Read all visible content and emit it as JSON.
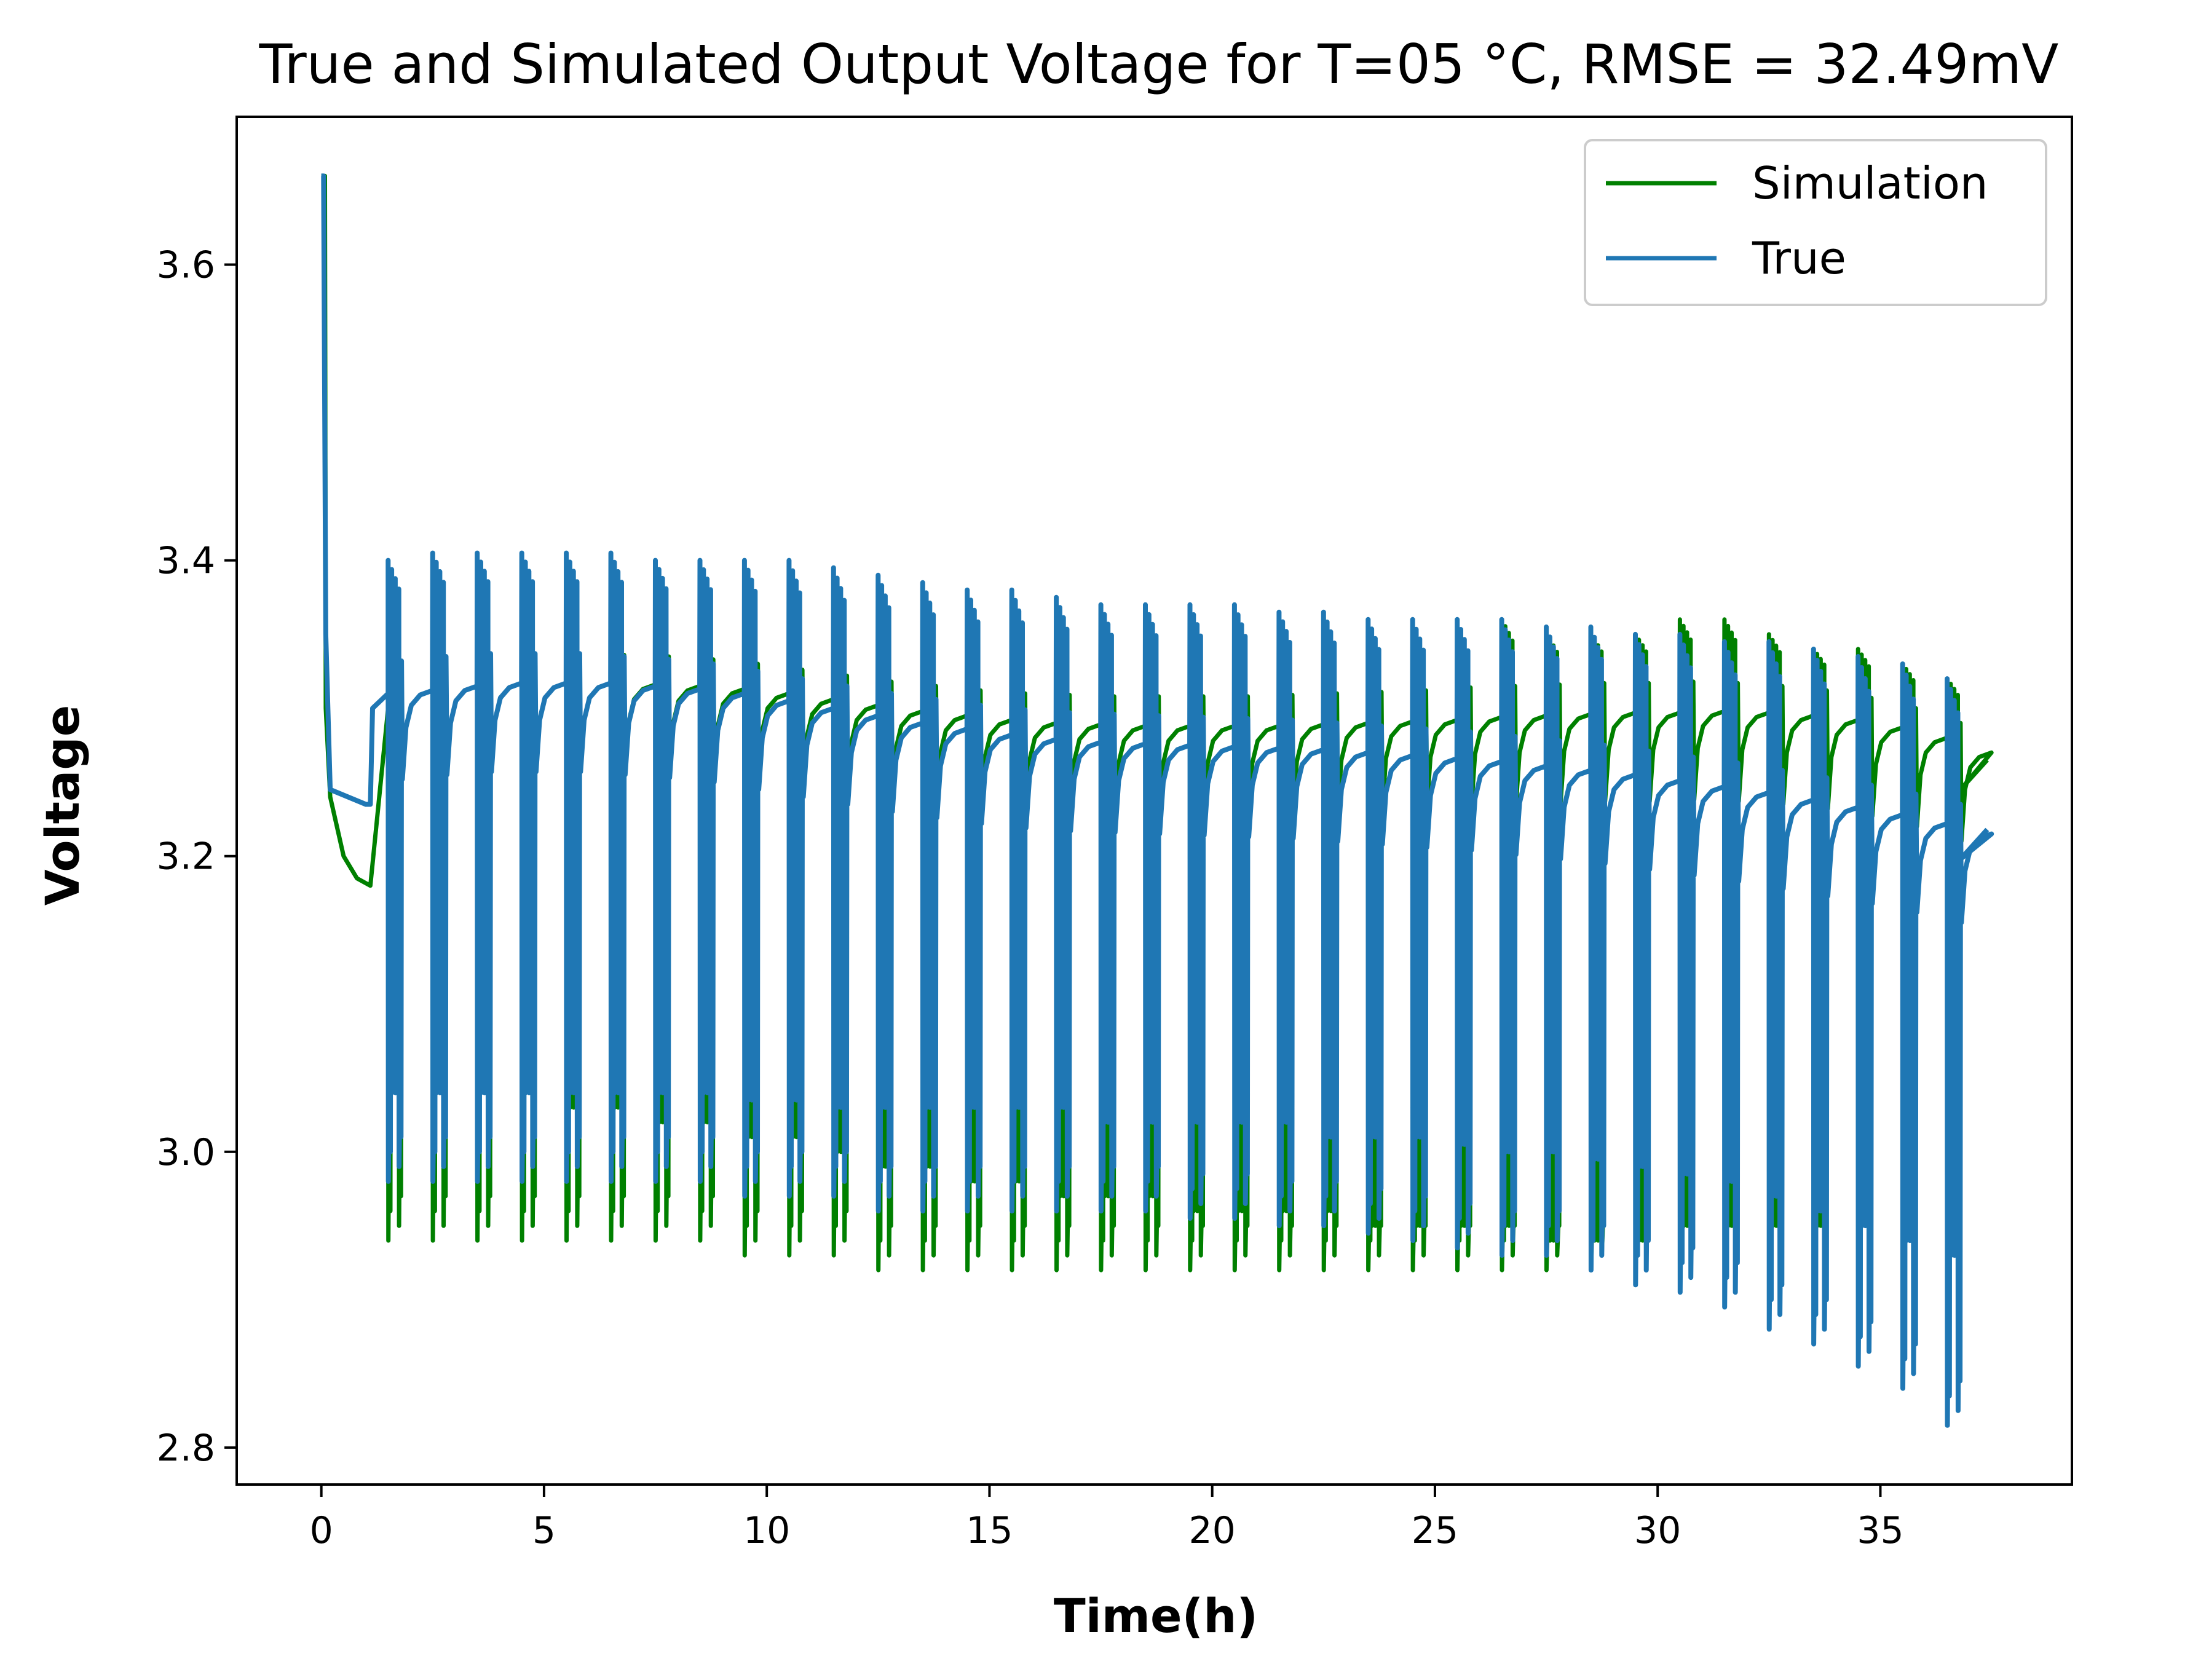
{
  "chart_data": {
    "type": "line",
    "title": "True and Simulated Output Voltage for T=05 °C, RMSE = 32.49mV",
    "xlabel": "Time(h)",
    "ylabel": "Voltage",
    "xlim": [
      -1.9,
      39.3
    ],
    "ylim": [
      2.775,
      3.7
    ],
    "xticks": [
      0,
      5,
      10,
      15,
      20,
      25,
      30,
      35
    ],
    "yticks": [
      2.8,
      3.0,
      3.2,
      3.4,
      3.6
    ],
    "ytick_labels": [
      "2.8",
      "3.0",
      "3.2",
      "3.4",
      "3.6"
    ],
    "grid": false,
    "legend_position": "top-right",
    "colors": {
      "simulation": "#008000",
      "true": "#1f77b4"
    },
    "pulse_start_h": 1.5,
    "pulse_period_h": 1.0,
    "series": [
      {
        "name": "Simulation",
        "color": "#008000",
        "points": [
          [
            0.0,
            3.66
          ],
          [
            0.08,
            3.66
          ],
          [
            0.1,
            3.3
          ],
          [
            0.2,
            3.24
          ],
          [
            0.5,
            3.2
          ],
          [
            0.8,
            3.185
          ],
          [
            1.1,
            3.18
          ],
          [
            1.5,
            3.3
          ]
        ],
        "pulse_peaks": [
          3.38,
          3.39,
          3.4,
          3.4,
          3.4,
          3.4,
          3.39,
          3.39,
          3.38,
          3.38,
          3.37,
          3.37,
          3.36,
          3.36,
          3.36,
          3.36,
          3.36,
          3.35,
          3.35,
          3.35,
          3.35,
          3.35,
          3.35,
          3.35,
          3.35,
          3.36,
          3.35,
          3.35,
          3.35,
          3.36,
          3.36,
          3.35,
          3.34,
          3.34,
          3.33,
          3.32
        ],
        "pulse_mins": [
          2.94,
          2.94,
          2.94,
          2.94,
          2.94,
          2.94,
          2.94,
          2.94,
          2.93,
          2.93,
          2.93,
          2.92,
          2.92,
          2.92,
          2.92,
          2.92,
          2.92,
          2.92,
          2.92,
          2.92,
          2.92,
          2.92,
          2.92,
          2.92,
          2.92,
          2.92,
          2.92,
          2.92,
          2.92,
          2.92,
          2.92,
          2.92,
          2.92,
          2.92,
          2.93,
          2.94
        ],
        "pulse_lower_band": [
          3.05,
          3.04,
          3.04,
          3.04,
          3.03,
          3.03,
          3.02,
          3.02,
          3.01,
          3.01,
          3.0,
          2.99,
          2.99,
          2.98,
          2.98,
          2.97,
          2.97,
          2.97,
          2.96,
          2.96,
          2.96,
          2.96,
          2.95,
          2.95,
          2.95,
          2.95,
          2.94,
          2.94,
          2.94,
          2.95,
          2.95,
          2.95,
          2.95,
          2.96,
          2.97,
          2.98
        ],
        "rest_levels": [
          3.312,
          3.315,
          3.317,
          3.317,
          3.317,
          3.316,
          3.315,
          3.313,
          3.31,
          3.306,
          3.302,
          3.298,
          3.295,
          3.292,
          3.29,
          3.289,
          3.288,
          3.288,
          3.288,
          3.288,
          3.289,
          3.29,
          3.291,
          3.292,
          3.294,
          3.295,
          3.296,
          3.297,
          3.297,
          3.298,
          3.297,
          3.295,
          3.292,
          3.287,
          3.28,
          3.27
        ],
        "end_point": [
          37.4,
          3.265
        ]
      },
      {
        "name": "True",
        "color": "#1f77b4",
        "points": [
          [
            0.0,
            3.66
          ],
          [
            0.05,
            3.66
          ],
          [
            0.1,
            3.35
          ],
          [
            0.2,
            3.245
          ],
          [
            0.6,
            3.24
          ],
          [
            1.0,
            3.235
          ],
          [
            1.1,
            3.235
          ],
          [
            1.15,
            3.3
          ],
          [
            1.5,
            3.31
          ]
        ],
        "pulse_peaks": [
          3.4,
          3.405,
          3.405,
          3.405,
          3.405,
          3.405,
          3.4,
          3.4,
          3.4,
          3.4,
          3.395,
          3.39,
          3.385,
          3.38,
          3.38,
          3.375,
          3.37,
          3.37,
          3.37,
          3.37,
          3.365,
          3.365,
          3.36,
          3.36,
          3.36,
          3.36,
          3.355,
          3.355,
          3.35,
          3.35,
          3.345,
          3.345,
          3.34,
          3.335,
          3.33,
          3.32
        ],
        "pulse_mins": [
          2.98,
          2.98,
          2.98,
          2.98,
          2.98,
          2.98,
          2.98,
          2.98,
          2.97,
          2.97,
          2.97,
          2.96,
          2.96,
          2.96,
          2.96,
          2.96,
          2.96,
          2.96,
          2.955,
          2.955,
          2.95,
          2.95,
          2.945,
          2.94,
          2.935,
          2.93,
          2.93,
          2.92,
          2.91,
          2.905,
          2.895,
          2.88,
          2.87,
          2.855,
          2.84,
          2.815
        ],
        "pulse_lower_band": [
          3.04,
          3.04,
          3.04,
          3.04,
          3.04,
          3.04,
          3.04,
          3.04,
          3.035,
          3.035,
          3.03,
          3.03,
          3.03,
          3.03,
          3.03,
          3.03,
          3.02,
          3.02,
          3.02,
          3.02,
          3.02,
          3.01,
          3.01,
          3.01,
          3.005,
          3.0,
          3.0,
          2.995,
          2.99,
          2.985,
          2.98,
          2.97,
          2.96,
          2.95,
          2.94,
          2.93
        ],
        "rest_levels": [
          3.312,
          3.315,
          3.317,
          3.317,
          3.317,
          3.315,
          3.313,
          3.31,
          3.305,
          3.3,
          3.295,
          3.29,
          3.286,
          3.282,
          3.279,
          3.277,
          3.276,
          3.275,
          3.274,
          3.273,
          3.272,
          3.27,
          3.268,
          3.266,
          3.264,
          3.261,
          3.258,
          3.255,
          3.251,
          3.247,
          3.243,
          3.238,
          3.233,
          3.228,
          3.222,
          3.215
        ],
        "end_point": [
          37.4,
          3.218
        ]
      }
    ]
  }
}
